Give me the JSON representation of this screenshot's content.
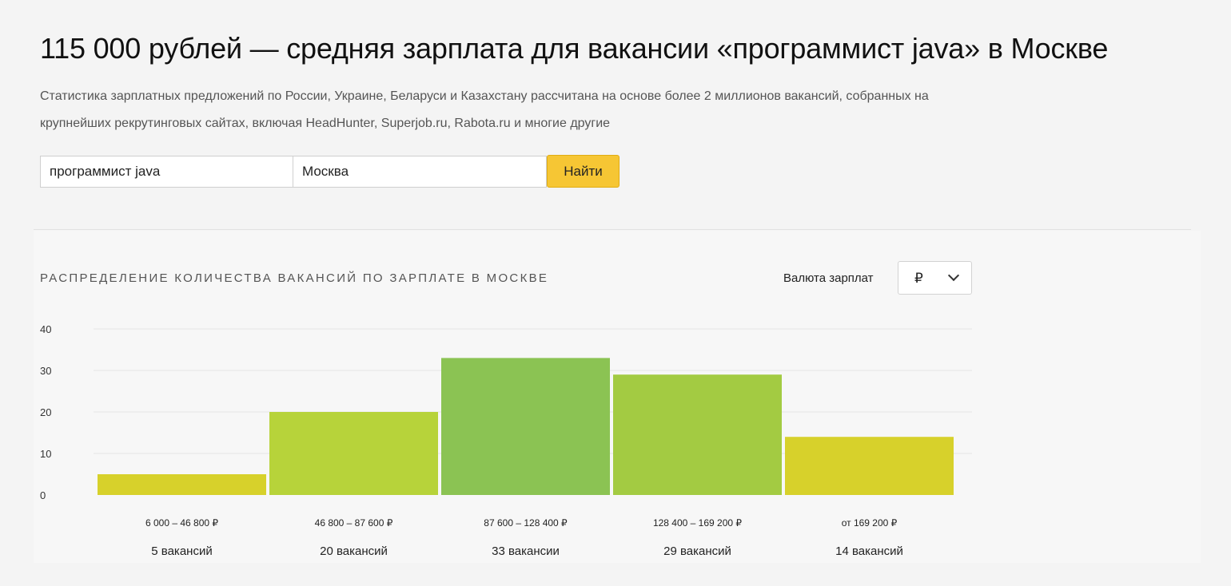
{
  "header": {
    "title": "115 000 рублей — средняя зарплата для вакансии «программист java» в Москве",
    "description": "Статистика зарплатных предложений по России, Украине, Беларуси и Казахстану рассчитана на основе более 2 миллионов вакансий, собранных на крупнейших рекрутинговых сайтах, включая HeadHunter, Superjob.ru, Rabota.ru и многие другие"
  },
  "search": {
    "job_value": "программист java",
    "city_value": "Москва",
    "button_label": "Найти"
  },
  "currency": {
    "label": "Валюта зарплат",
    "selected": "₽"
  },
  "colors": {
    "bar_yellow": "#d7d12b",
    "bar_yellow_green": "#b7d33a",
    "bar_green": "#8bc353",
    "search_button": "#f6c634"
  },
  "chart_data": {
    "type": "bar",
    "title": "РАСПРЕДЕЛЕНИЕ КОЛИЧЕСТВА ВАКАНСИЙ ПО ЗАРПЛАТЕ В МОСКВЕ",
    "categories": [
      "6 000 – 46 800 ₽",
      "46 800 – 87 600 ₽",
      "87 600 – 128 400 ₽",
      "128 400 – 169 200 ₽",
      "от 169 200 ₽"
    ],
    "values": [
      5,
      20,
      33,
      29,
      14
    ],
    "value_labels": [
      "5 вакансий",
      "20 вакансий",
      "33 вакансии",
      "29 вакансий",
      "14 вакансий"
    ],
    "bar_colors": [
      "#d7d12b",
      "#b7d33a",
      "#8bc353",
      "#a3cb42",
      "#d7d12b"
    ],
    "yticks": [
      0,
      10,
      20,
      30,
      40
    ],
    "ylim": [
      0,
      40
    ],
    "grid": true,
    "xlabel": "",
    "ylabel": ""
  }
}
